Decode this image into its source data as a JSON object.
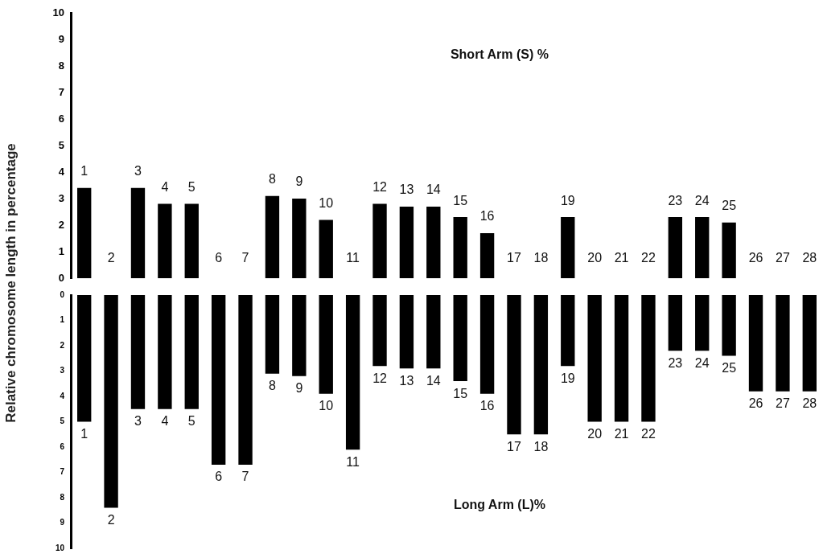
{
  "chart_data": [
    {
      "type": "bar",
      "ylabel": "Relative chromosome length in percentage",
      "annotations": [
        "Short Arm (S) %"
      ],
      "categories": [
        "1",
        "2",
        "3",
        "4",
        "5",
        "6",
        "7",
        "8",
        "9",
        "10",
        "11",
        "12",
        "13",
        "14",
        "15",
        "16",
        "17",
        "18",
        "19",
        "20",
        "21",
        "22",
        "23",
        "24",
        "25",
        "26",
        "27",
        "28"
      ],
      "values": [
        3.4,
        0,
        3.4,
        2.8,
        2.8,
        0,
        0,
        3.1,
        3.0,
        2.2,
        0,
        2.8,
        2.7,
        2.7,
        2.3,
        1.7,
        0,
        0,
        2.3,
        0,
        0,
        0,
        2.3,
        2.3,
        2.1,
        0,
        0,
        0
      ],
      "color": "#000000",
      "ylim": [
        0,
        10
      ],
      "yticks": [
        0,
        1,
        2,
        3,
        4,
        5,
        6,
        7,
        8,
        9,
        10
      ],
      "grid": false,
      "legend": false
    },
    {
      "type": "bar",
      "annotations": [
        "Long Arm (L)%"
      ],
      "categories": [
        "1",
        "2",
        "3",
        "4",
        "5",
        "6",
        "7",
        "8",
        "9",
        "10",
        "11",
        "12",
        "13",
        "14",
        "15",
        "16",
        "17",
        "18",
        "19",
        "20",
        "21",
        "22",
        "23",
        "24",
        "25",
        "26",
        "27",
        "28"
      ],
      "values": [
        5.0,
        8.4,
        4.5,
        4.5,
        4.5,
        6.7,
        6.7,
        3.1,
        3.2,
        3.9,
        6.1,
        2.8,
        2.9,
        2.9,
        3.4,
        3.9,
        5.5,
        5.5,
        2.8,
        5.0,
        5.0,
        5.0,
        2.2,
        2.2,
        2.4,
        3.8,
        3.8,
        3.8
      ],
      "color": "#000000",
      "ylim": [
        10,
        0
      ],
      "yticks": [
        0,
        1,
        2,
        3,
        4,
        5,
        6,
        7,
        8,
        9,
        10
      ],
      "grid": false,
      "legend": false
    }
  ]
}
